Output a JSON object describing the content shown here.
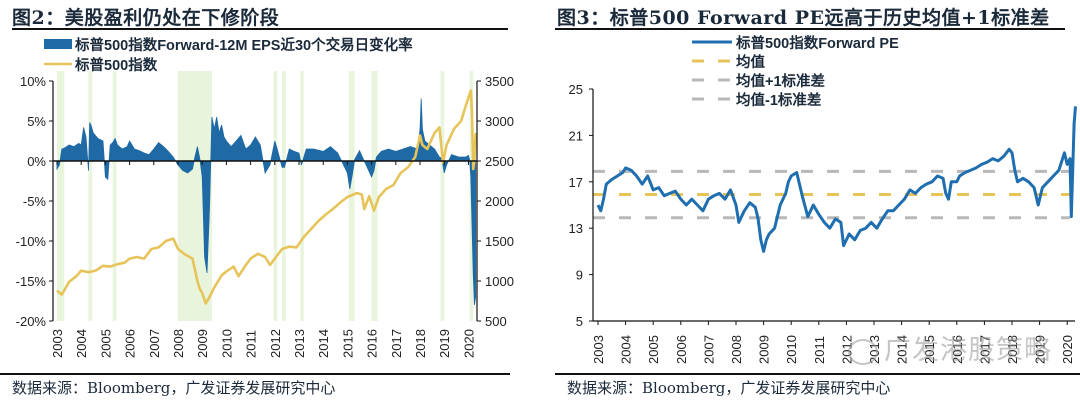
{
  "left": {
    "title": "图2：美股盈利仍处在下修阶段",
    "source": "数据来源：Bloomberg，广发证券发展研究中心"
  },
  "right": {
    "title": "图3：标普500 Forward PE远高于历史均值+1标准差",
    "source": "数据来源：Bloomberg，广发证券发展研究中心"
  },
  "watermark": "广发港股策略",
  "colors": {
    "eps_fill": "#1f6aa5",
    "eps_fill_shaded": "#2e7f99",
    "spx_line": "#e6c45a",
    "shade": "#e8f5dc",
    "pe_line": "#1f6fb0",
    "mean_line": "#e6c45a",
    "sd_line": "#b8b8b8"
  },
  "chart_data": [
    {
      "type": "area",
      "title": "图2：美股盈利仍处在下修阶段",
      "legend": [
        "标普500指数Forward-12M EPS近30个交易日变化率",
        "标普500指数"
      ],
      "legend_position": "top-left",
      "x_ticks": [
        "2003",
        "2004",
        "2005",
        "2006",
        "2007",
        "2008",
        "2009",
        "2010",
        "2011",
        "2012",
        "2013",
        "2014",
        "2015",
        "2016",
        "2017",
        "2018",
        "2019",
        "2020"
      ],
      "y_left": {
        "ticks": [
          "10%",
          "5%",
          "0%",
          "-5%",
          "-10%",
          "-15%",
          "-20%"
        ],
        "range": [
          -20,
          10
        ]
      },
      "y_right": {
        "ticks": [
          "3500",
          "3000",
          "2500",
          "2000",
          "1500",
          "1000",
          "500"
        ],
        "range": [
          500,
          3500
        ]
      },
      "shaded_periods": [
        [
          2003.0,
          2003.3
        ],
        [
          2004.3,
          2004.45
        ],
        [
          2005.3,
          2005.45
        ],
        [
          2008.0,
          2009.4
        ],
        [
          2011.95,
          2012.1
        ],
        [
          2012.3,
          2012.45
        ],
        [
          2013.05,
          2013.2
        ],
        [
          2015.05,
          2015.3
        ],
        [
          2016.0,
          2016.25
        ],
        [
          2018.85,
          2019.0
        ],
        [
          2020.05,
          2020.2
        ]
      ],
      "series": [
        {
          "name": "标普500指数Forward-12M EPS近30个交易日变化率",
          "axis": "left",
          "unit": "%",
          "x": [
            2003.0,
            2003.1,
            2003.2,
            2003.3,
            2003.5,
            2003.7,
            2003.9,
            2004.0,
            2004.1,
            2004.2,
            2004.3,
            2004.35,
            2004.4,
            2004.5,
            2004.7,
            2004.9,
            2005.0,
            2005.1,
            2005.2,
            2005.3,
            2005.4,
            2005.5,
            2005.7,
            2005.9,
            2006.0,
            2006.2,
            2006.4,
            2006.6,
            2006.8,
            2007.0,
            2007.2,
            2007.4,
            2007.6,
            2007.8,
            2008.0,
            2008.2,
            2008.4,
            2008.6,
            2008.7,
            2008.8,
            2008.9,
            2009.0,
            2009.1,
            2009.2,
            2009.3,
            2009.4,
            2009.5,
            2009.6,
            2009.7,
            2009.8,
            2009.9,
            2010.0,
            2010.2,
            2010.4,
            2010.6,
            2010.8,
            2011.0,
            2011.2,
            2011.4,
            2011.6,
            2011.8,
            2012.0,
            2012.1,
            2012.3,
            2012.4,
            2012.6,
            2012.8,
            2013.0,
            2013.1,
            2013.3,
            2013.6,
            2014.0,
            2014.3,
            2014.6,
            2015.0,
            2015.1,
            2015.2,
            2015.3,
            2015.5,
            2016.0,
            2016.1,
            2016.2,
            2016.4,
            2016.7,
            2017.0,
            2017.3,
            2017.6,
            2017.9,
            2018.0,
            2018.05,
            2018.1,
            2018.2,
            2018.4,
            2018.6,
            2018.8,
            2018.9,
            2019.0,
            2019.1,
            2019.3,
            2019.6,
            2019.9,
            2020.0,
            2020.05,
            2020.1,
            2020.15,
            2020.2,
            2020.25,
            2020.3
          ],
          "values": [
            -1.0,
            -0.5,
            1.5,
            1.6,
            2.0,
            1.8,
            2.2,
            2.0,
            4.2,
            3.0,
            -1.2,
            4.8,
            4.5,
            3.5,
            2.8,
            2.5,
            -2.0,
            -2.3,
            2.0,
            2.3,
            2.8,
            2.0,
            1.5,
            1.8,
            2.5,
            1.5,
            1.3,
            1.0,
            0.8,
            1.5,
            2.3,
            1.8,
            1.2,
            0.5,
            -0.5,
            -1.2,
            -1.5,
            -1.0,
            0.5,
            1.8,
            0.3,
            -2.0,
            -12.0,
            -14.0,
            -6.0,
            5.5,
            4.0,
            5.5,
            3.5,
            4.5,
            3.0,
            2.5,
            1.8,
            2.5,
            3.2,
            1.5,
            2.0,
            3.0,
            2.0,
            -1.5,
            -0.5,
            2.5,
            1.5,
            -0.8,
            -0.8,
            1.5,
            1.2,
            1.0,
            -0.5,
            1.5,
            1.5,
            1.2,
            1.8,
            1.0,
            -1.5,
            -3.5,
            -1.8,
            0.2,
            1.3,
            -2.0,
            -1.2,
            0.5,
            1.2,
            1.5,
            1.2,
            1.5,
            1.8,
            1.5,
            4.0,
            7.8,
            4.0,
            2.5,
            2.0,
            1.5,
            0.5,
            0.3,
            -1.5,
            -0.5,
            0.8,
            0.5,
            0.5,
            0.7,
            0.2,
            -2.0,
            -8.0,
            -14.0,
            -18.0,
            -17.0
          ]
        },
        {
          "name": "标普500指数",
          "axis": "right",
          "unit": "points",
          "x": [
            2003.0,
            2003.2,
            2003.5,
            2003.8,
            2004.0,
            2004.3,
            2004.6,
            2004.9,
            2005.2,
            2005.5,
            2005.8,
            2006.0,
            2006.3,
            2006.6,
            2006.9,
            2007.2,
            2007.5,
            2007.8,
            2008.0,
            2008.3,
            2008.6,
            2008.8,
            2008.9,
            2009.0,
            2009.15,
            2009.3,
            2009.5,
            2009.8,
            2010.0,
            2010.3,
            2010.5,
            2010.8,
            2011.0,
            2011.3,
            2011.6,
            2011.8,
            2012.0,
            2012.3,
            2012.6,
            2012.9,
            2013.2,
            2013.5,
            2013.8,
            2014.1,
            2014.4,
            2014.7,
            2015.0,
            2015.4,
            2015.6,
            2015.7,
            2015.9,
            2016.1,
            2016.3,
            2016.6,
            2016.9,
            2017.2,
            2017.5,
            2017.8,
            2018.0,
            2018.1,
            2018.3,
            2018.6,
            2018.8,
            2018.95,
            2019.1,
            2019.4,
            2019.7,
            2019.9,
            2020.1,
            2020.15,
            2020.2,
            2020.25,
            2020.3
          ],
          "values": [
            880,
            830,
            990,
            1060,
            1130,
            1110,
            1130,
            1190,
            1180,
            1210,
            1230,
            1280,
            1300,
            1280,
            1400,
            1420,
            1500,
            1530,
            1400,
            1330,
            1280,
            1000,
            900,
            850,
            720,
            800,
            920,
            1070,
            1120,
            1180,
            1060,
            1200,
            1280,
            1340,
            1300,
            1200,
            1280,
            1400,
            1430,
            1420,
            1550,
            1650,
            1750,
            1830,
            1900,
            1980,
            2050,
            2100,
            2080,
            1900,
            2060,
            1880,
            2050,
            2150,
            2200,
            2350,
            2420,
            2550,
            2820,
            2700,
            2650,
            2850,
            2920,
            2480,
            2700,
            2900,
            3000,
            3200,
            3380,
            3100,
            2400,
            2500,
            2850
          ]
        }
      ]
    },
    {
      "type": "line",
      "title": "图3：标普500 Forward PE远高于历史均值+1标准差",
      "legend": [
        "标普500指数Forward PE",
        "均值",
        "均值+1标准差",
        "均值-1标准差"
      ],
      "legend_position": "top-center",
      "x_ticks": [
        "2003",
        "2004",
        "2005",
        "2006",
        "2007",
        "2008",
        "2009",
        "2010",
        "2011",
        "2012",
        "2013",
        "2014",
        "2015",
        "2016",
        "2017",
        "2018",
        "2019",
        "2020"
      ],
      "y": {
        "ticks": [
          "25",
          "21",
          "17",
          "13",
          "9",
          "5"
        ],
        "range": [
          5,
          25
        ]
      },
      "reference_lines": {
        "mean": 15.9,
        "plus_1sd": 17.9,
        "minus_1sd": 13.9
      },
      "series": [
        {
          "name": "标普500指数Forward PE",
          "x": [
            2003.0,
            2003.1,
            2003.2,
            2003.3,
            2003.5,
            2003.7,
            2003.9,
            2004.0,
            2004.2,
            2004.4,
            2004.6,
            2004.8,
            2005.0,
            2005.2,
            2005.4,
            2005.6,
            2005.8,
            2006.0,
            2006.2,
            2006.4,
            2006.6,
            2006.8,
            2007.0,
            2007.2,
            2007.4,
            2007.6,
            2007.8,
            2008.0,
            2008.1,
            2008.3,
            2008.5,
            2008.7,
            2008.8,
            2008.9,
            2009.0,
            2009.1,
            2009.2,
            2009.4,
            2009.6,
            2009.8,
            2009.9,
            2010.0,
            2010.2,
            2010.4,
            2010.6,
            2010.8,
            2011.0,
            2011.2,
            2011.4,
            2011.6,
            2011.8,
            2011.9,
            2012.1,
            2012.3,
            2012.5,
            2012.7,
            2012.9,
            2013.1,
            2013.3,
            2013.5,
            2013.7,
            2013.9,
            2014.1,
            2014.3,
            2014.5,
            2014.7,
            2014.9,
            2015.1,
            2015.3,
            2015.5,
            2015.6,
            2015.7,
            2015.8,
            2016.0,
            2016.1,
            2016.3,
            2016.5,
            2016.7,
            2016.9,
            2017.1,
            2017.3,
            2017.5,
            2017.7,
            2017.9,
            2018.0,
            2018.1,
            2018.2,
            2018.4,
            2018.6,
            2018.8,
            2018.95,
            2019.1,
            2019.3,
            2019.5,
            2019.7,
            2019.9,
            2020.0,
            2020.1,
            2020.15,
            2020.2,
            2020.25,
            2020.3
          ],
          "values": [
            15.0,
            14.5,
            15.5,
            16.8,
            17.2,
            17.5,
            17.8,
            18.2,
            18.0,
            17.5,
            16.8,
            17.5,
            16.3,
            16.5,
            15.8,
            16.0,
            16.2,
            15.5,
            15.0,
            15.5,
            15.0,
            14.5,
            15.5,
            15.8,
            16.0,
            15.5,
            16.3,
            15.0,
            13.5,
            14.5,
            15.2,
            14.8,
            13.8,
            12.0,
            11.0,
            12.0,
            12.5,
            13.0,
            15.0,
            16.0,
            17.0,
            17.5,
            17.8,
            15.8,
            14.0,
            15.0,
            14.2,
            13.5,
            13.0,
            13.8,
            13.5,
            11.5,
            12.5,
            12.0,
            12.8,
            13.0,
            13.5,
            13.0,
            13.8,
            14.5,
            14.5,
            15.0,
            15.5,
            16.3,
            16.0,
            16.5,
            16.8,
            17.0,
            17.5,
            17.3,
            16.0,
            15.5,
            17.0,
            17.0,
            17.5,
            17.8,
            18.0,
            18.2,
            18.5,
            18.7,
            19.0,
            18.8,
            19.2,
            19.8,
            19.5,
            18.0,
            17.0,
            17.3,
            17.0,
            16.5,
            15.0,
            16.5,
            17.0,
            17.5,
            18.0,
            19.5,
            18.5,
            19.0,
            14.0,
            18.0,
            22.0,
            23.5
          ]
        }
      ]
    }
  ]
}
